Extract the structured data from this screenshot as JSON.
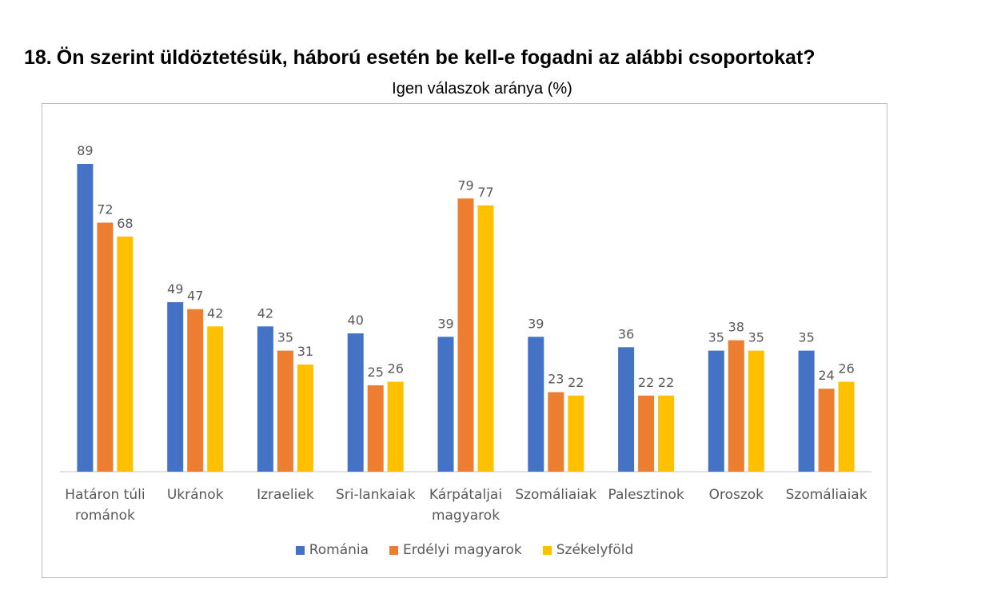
{
  "question": {
    "number": "18.",
    "text": "Ön szerint üldöztetésük, háború esetén be kell-e fogadni az alábbi csoportokat?"
  },
  "chart_data": {
    "type": "bar",
    "title": "Igen válaszok aránya (%)",
    "categories": [
      [
        "Határon túli",
        "románok"
      ],
      [
        "Ukránok"
      ],
      [
        "Izraeliek"
      ],
      [
        "Sri-lankaiak"
      ],
      [
        "Kárpátaljai",
        "magyarok"
      ],
      [
        "Szomáliaiak"
      ],
      [
        "Palesztinok"
      ],
      [
        "Oroszok"
      ],
      [
        "Szomáliaiak"
      ]
    ],
    "series": [
      {
        "name": "Románia",
        "color": "#4472c4",
        "values": [
          89,
          49,
          42,
          40,
          39,
          39,
          36,
          35,
          35
        ]
      },
      {
        "name": "Erdélyi magyarok",
        "color": "#ed7d31",
        "values": [
          72,
          47,
          35,
          25,
          79,
          23,
          22,
          38,
          24
        ]
      },
      {
        "name": "Székelyföld",
        "color": "#ffc000",
        "values": [
          68,
          42,
          31,
          26,
          77,
          22,
          22,
          35,
          26
        ]
      }
    ],
    "ylim": [
      0,
      100
    ],
    "xlabel": "",
    "ylabel": "",
    "grid": false,
    "legend_position": "bottom"
  }
}
